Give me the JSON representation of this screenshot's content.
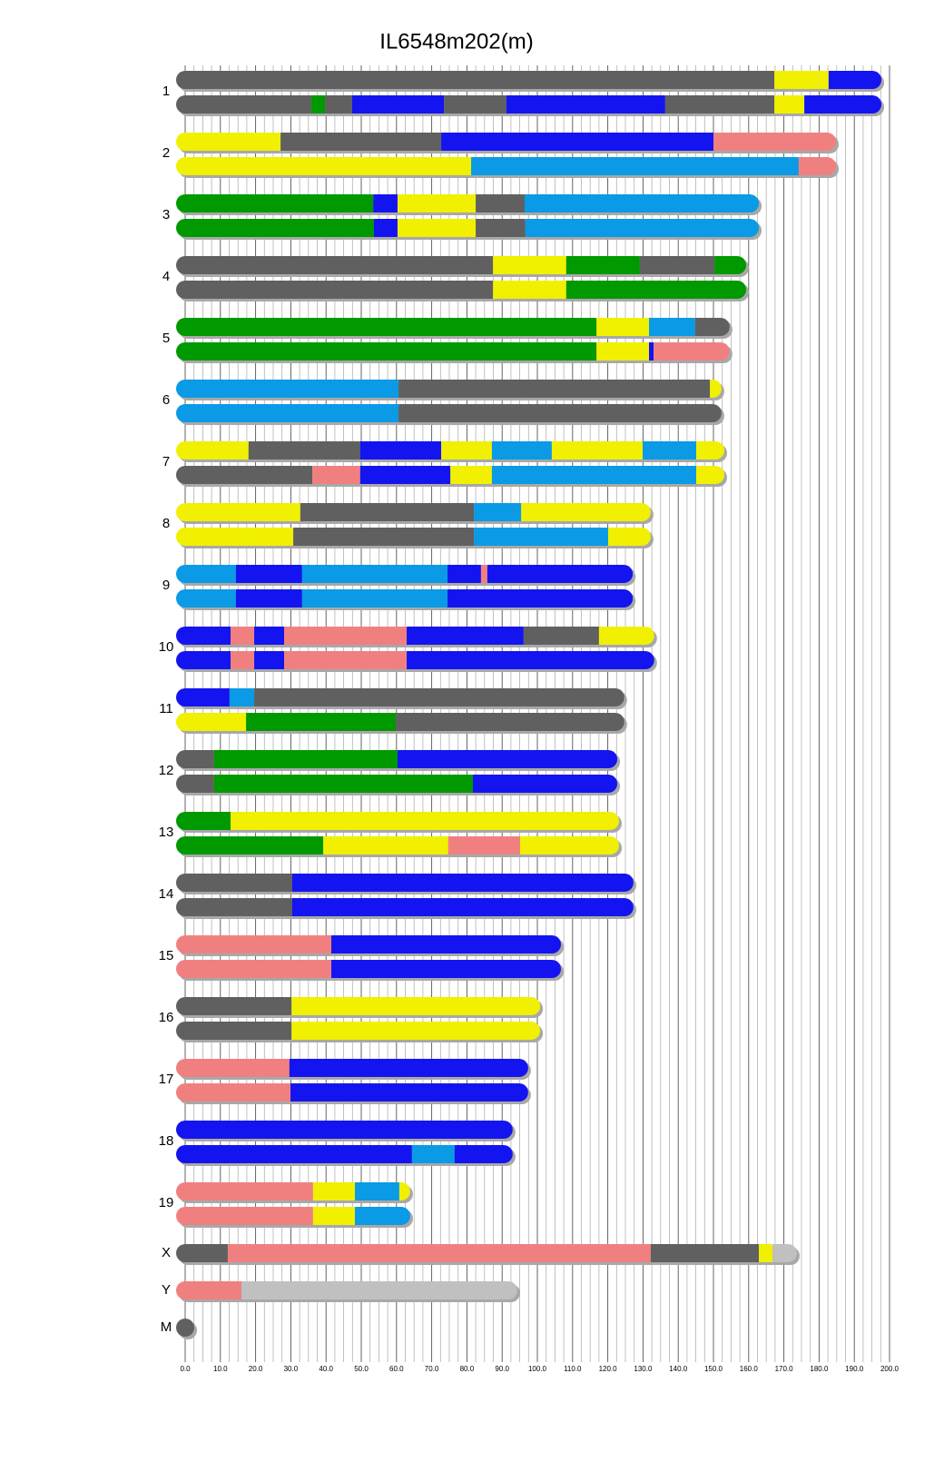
{
  "chart_data": {
    "type": "ideogram",
    "title": "IL6548m202(m)",
    "xlim": [
      0,
      200
    ],
    "xticks": [
      {
        "value": 0,
        "label": "0.0"
      },
      {
        "value": 10,
        "label": "10.0"
      },
      {
        "value": 20,
        "label": "20.0"
      },
      {
        "value": 30,
        "label": "30.0"
      },
      {
        "value": 40,
        "label": "40.0"
      },
      {
        "value": 50,
        "label": "50.0"
      },
      {
        "value": 60,
        "label": "60.0"
      },
      {
        "value": 70,
        "label": "70.0"
      },
      {
        "value": 80,
        "label": "80.0"
      },
      {
        "value": 90,
        "label": "90.0"
      },
      {
        "value": 100,
        "label": "100.0"
      },
      {
        "value": 110,
        "label": "110.0"
      },
      {
        "value": 120,
        "label": "120.0"
      },
      {
        "value": 130,
        "label": "130.0"
      },
      {
        "value": 140,
        "label": "140.0"
      },
      {
        "value": 150,
        "label": "150.0"
      },
      {
        "value": 160,
        "label": "160.0"
      },
      {
        "value": 170,
        "label": "170.0"
      },
      {
        "value": 180,
        "label": "180.0"
      },
      {
        "value": 190,
        "label": "190.0"
      },
      {
        "value": 200,
        "label": "200.0"
      }
    ],
    "minor_xticks": [
      2.5,
      5,
      7.5,
      12.5,
      15,
      17.5,
      22.5,
      25,
      27.5,
      32.5,
      35,
      37.5,
      42.5,
      45,
      47.5,
      52.5,
      55,
      57.5,
      62.5,
      65,
      67.5,
      72.5,
      75,
      77.5,
      82.5,
      85,
      87.5,
      92.5,
      95,
      97.5,
      102.5,
      105,
      107.5,
      112.5,
      115,
      117.5,
      122.5,
      125,
      127.5,
      132.5,
      135,
      137.5,
      142.5,
      145,
      147.5,
      152.5,
      155,
      157.5,
      162.5,
      165,
      167.5,
      172.5,
      175,
      177.5,
      182.5,
      185,
      187.5,
      192.5,
      195,
      197.5
    ],
    "grid": true,
    "chromosomes": [
      {
        "name": "1",
        "haplotypes": [
          {
            "ends": [
              167.3,
              182.7,
              197.7
            ],
            "colors": [
              "#606060",
              "#f0f000",
              "#1414f0"
            ]
          },
          {
            "ends": [
              35.8,
              39.7,
              47.4,
              73.5,
              91.2,
              136.3,
              167.3,
              175.8,
              197.7
            ],
            "colors": [
              "#606060",
              "#009900",
              "#606060",
              "#1414f0",
              "#606060",
              "#1414f0",
              "#606060",
              "#f0f000",
              "#1414f0"
            ]
          }
        ]
      },
      {
        "name": "2",
        "haplotypes": [
          {
            "ends": [
              27.1,
              72.7,
              150,
              184.8
            ],
            "colors": [
              "#f0f000",
              "#606060",
              "#1414f0",
              "#f08080"
            ]
          },
          {
            "ends": [
              81.2,
              174.2,
              184.8
            ],
            "colors": [
              "#f0f000",
              "#0a9ae6",
              "#f08080"
            ]
          }
        ]
      },
      {
        "name": "3",
        "haplotypes": [
          {
            "ends": [
              53.4,
              60.3,
              82.5,
              96.4,
              162.9
            ],
            "colors": [
              "#009900",
              "#1414f0",
              "#f0f000",
              "#606060",
              "#0a9ae6"
            ]
          },
          {
            "ends": [
              53.6,
              60.3,
              82.5,
              96.6,
              162.9
            ],
            "colors": [
              "#009900",
              "#1414f0",
              "#f0f000",
              "#606060",
              "#0a9ae6"
            ]
          }
        ]
      },
      {
        "name": "4",
        "haplotypes": [
          {
            "ends": [
              87.4,
              108.2,
              129.1,
              150.3,
              159.3
            ],
            "colors": [
              "#606060",
              "#f0f000",
              "#009900",
              "#606060",
              "#009900"
            ]
          },
          {
            "ends": [
              87.4,
              108.2,
              159.3
            ],
            "colors": [
              "#606060",
              "#f0f000",
              "#009900"
            ]
          }
        ]
      },
      {
        "name": "5",
        "haplotypes": [
          {
            "ends": [
              116.8,
              131.7,
              144.8,
              154.6
            ],
            "colors": [
              "#009900",
              "#f0f000",
              "#0a9ae6",
              "#606060"
            ]
          },
          {
            "ends": [
              116.8,
              131.7,
              133,
              154.6
            ],
            "colors": [
              "#009900",
              "#f0f000",
              "#1414f0",
              "#f08080"
            ]
          }
        ]
      },
      {
        "name": "6",
        "haplotypes": [
          {
            "ends": [
              60.6,
              149,
              152.3
            ],
            "colors": [
              "#0a9ae6",
              "#606060",
              "#f0f000"
            ]
          },
          {
            "ends": [
              60.6,
              152.3
            ],
            "colors": [
              "#0a9ae6",
              "#606060"
            ]
          }
        ]
      },
      {
        "name": "7",
        "haplotypes": [
          {
            "ends": [
              18,
              49.7,
              72.7,
              87.1,
              104.1,
              129.9,
              145.1,
              153.1
            ],
            "colors": [
              "#f0f000",
              "#606060",
              "#1414f0",
              "#f0f000",
              "#0a9ae6",
              "#f0f000",
              "#0a9ae6",
              "#f0f000"
            ]
          },
          {
            "ends": [
              36.1,
              49.7,
              75.3,
              87.1,
              145.1,
              153.1
            ],
            "colors": [
              "#606060",
              "#f08080",
              "#1414f0",
              "#f0f000",
              "#0a9ae6",
              "#f0f000"
            ]
          }
        ]
      },
      {
        "name": "8",
        "haplotypes": [
          {
            "ends": [
              32.7,
              82,
              95.4,
              132.2
            ],
            "colors": [
              "#f0f000",
              "#606060",
              "#0a9ae6",
              "#f0f000"
            ]
          },
          {
            "ends": [
              30.7,
              82,
              120.1,
              132.2
            ],
            "colors": [
              "#f0f000",
              "#606060",
              "#0a9ae6",
              "#f0f000"
            ]
          }
        ]
      },
      {
        "name": "9",
        "haplotypes": [
          {
            "ends": [
              14.4,
              33.2,
              74.5,
              84,
              85.8,
              127.1
            ],
            "colors": [
              "#0a9ae6",
              "#1414f0",
              "#0a9ae6",
              "#1414f0",
              "#f08080",
              "#1414f0"
            ]
          },
          {
            "ends": [
              14.4,
              33.2,
              74.5,
              127.1
            ],
            "colors": [
              "#0a9ae6",
              "#1414f0",
              "#0a9ae6",
              "#1414f0"
            ]
          }
        ]
      },
      {
        "name": "10",
        "haplotypes": [
          {
            "ends": [
              12.9,
              19.6,
              28.1,
              62.9,
              96.1,
              117.5,
              133.2
            ],
            "colors": [
              "#1414f0",
              "#f08080",
              "#1414f0",
              "#f08080",
              "#1414f0",
              "#606060",
              "#f0f000"
            ]
          },
          {
            "ends": [
              12.9,
              19.6,
              28.1,
              62.9,
              133.2
            ],
            "colors": [
              "#1414f0",
              "#f08080",
              "#1414f0",
              "#f08080",
              "#1414f0"
            ]
          }
        ]
      },
      {
        "name": "11",
        "haplotypes": [
          {
            "ends": [
              12.6,
              19.6,
              124.7
            ],
            "colors": [
              "#1414f0",
              "#0a9ae6",
              "#606060"
            ]
          },
          {
            "ends": [
              17.3,
              59.8,
              124.7
            ],
            "colors": [
              "#f0f000",
              "#009900",
              "#606060"
            ]
          }
        ]
      },
      {
        "name": "12",
        "haplotypes": [
          {
            "ends": [
              8.2,
              60.3,
              122.7
            ],
            "colors": [
              "#606060",
              "#009900",
              "#1414f0"
            ]
          },
          {
            "ends": [
              8.2,
              81.7,
              122.7
            ],
            "colors": [
              "#606060",
              "#009900",
              "#1414f0"
            ]
          }
        ]
      },
      {
        "name": "13",
        "haplotypes": [
          {
            "ends": [
              12.9,
              123.2
            ],
            "colors": [
              "#009900",
              "#f0f000"
            ]
          },
          {
            "ends": [
              39.2,
              74.7,
              95.1,
              123.2
            ],
            "colors": [
              "#009900",
              "#f0f000",
              "#f08080",
              "#f0f000"
            ]
          }
        ]
      },
      {
        "name": "14",
        "haplotypes": [
          {
            "ends": [
              30.4,
              127.3
            ],
            "colors": [
              "#606060",
              "#1414f0"
            ]
          },
          {
            "ends": [
              30.4,
              127.3
            ],
            "colors": [
              "#606060",
              "#1414f0"
            ]
          }
        ]
      },
      {
        "name": "15",
        "haplotypes": [
          {
            "ends": [
              41.5,
              106.7
            ],
            "colors": [
              "#f08080",
              "#1414f0"
            ]
          },
          {
            "ends": [
              41.5,
              106.7
            ],
            "colors": [
              "#f08080",
              "#1414f0"
            ]
          }
        ]
      },
      {
        "name": "16",
        "haplotypes": [
          {
            "ends": [
              30.2,
              100.8
            ],
            "colors": [
              "#606060",
              "#f0f000"
            ]
          },
          {
            "ends": [
              30.2,
              100.8
            ],
            "colors": [
              "#606060",
              "#f0f000"
            ]
          }
        ]
      },
      {
        "name": "17",
        "haplotypes": [
          {
            "ends": [
              29.6,
              97.4
            ],
            "colors": [
              "#f08080",
              "#1414f0"
            ]
          },
          {
            "ends": [
              29.9,
              97.4
            ],
            "colors": [
              "#f08080",
              "#1414f0"
            ]
          }
        ]
      },
      {
        "name": "18",
        "haplotypes": [
          {
            "ends": [
              93
            ],
            "colors": [
              "#1414f0"
            ]
          },
          {
            "ends": [
              64.4,
              76.5,
              93
            ],
            "colors": [
              "#1414f0",
              "#0a9ae6",
              "#1414f0"
            ]
          }
        ]
      },
      {
        "name": "19",
        "haplotypes": [
          {
            "ends": [
              36.3,
              48.2,
              60.8,
              63.9
            ],
            "colors": [
              "#f08080",
              "#f0f000",
              "#0a9ae6",
              "#f0f000"
            ]
          },
          {
            "ends": [
              36.3,
              48.2,
              63.9
            ],
            "colors": [
              "#f08080",
              "#f0f000",
              "#0a9ae6"
            ]
          }
        ]
      },
      {
        "name": "X",
        "haplotypes": [
          {
            "ends": [
              12.1,
              132.2,
              162.9,
              166.8,
              173.7
            ],
            "colors": [
              "#606060",
              "#f08080",
              "#606060",
              "#f0f000",
              "#c0c0c0"
            ]
          }
        ]
      },
      {
        "name": "Y",
        "haplotypes": [
          {
            "ends": [
              16,
              94.3
            ],
            "colors": [
              "#f08080",
              "#c0c0c0"
            ]
          }
        ]
      },
      {
        "name": "M",
        "haplotypes": [
          {
            "ends": [
              0.02
            ],
            "colors": [
              "#606060"
            ]
          }
        ]
      }
    ]
  }
}
